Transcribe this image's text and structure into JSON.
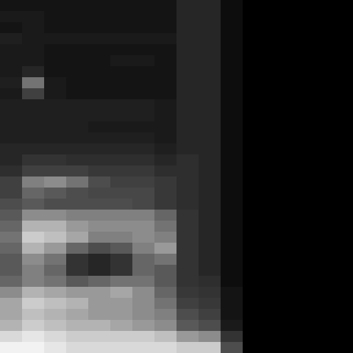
{
  "chart_data": {
    "type": "heatmap",
    "tick_labels": false,
    "grid": false,
    "color": "#ffffff",
    "zlim": [
      0,
      100
    ],
    "cells": [
      [
        8,
        8,
        8,
        8,
        8,
        8,
        8,
        8,
        15,
        15,
        5,
        0,
        0,
        0,
        0,
        0
      ],
      [
        10,
        10,
        8,
        8,
        8,
        8,
        8,
        8,
        15,
        15,
        5,
        0,
        0,
        0,
        0,
        0
      ],
      [
        8,
        10,
        8,
        8,
        8,
        8,
        8,
        8,
        15,
        15,
        5,
        0,
        0,
        0,
        0,
        0
      ],
      [
        12,
        10,
        10,
        10,
        10,
        10,
        10,
        10,
        15,
        15,
        5,
        0,
        0,
        0,
        0,
        0
      ],
      [
        10,
        10,
        8,
        8,
        8,
        8,
        8,
        8,
        15,
        15,
        5,
        0,
        0,
        0,
        0,
        0
      ],
      [
        10,
        10,
        8,
        8,
        8,
        10,
        10,
        8,
        15,
        15,
        5,
        0,
        0,
        0,
        0,
        0
      ],
      [
        10,
        15,
        8,
        8,
        8,
        8,
        8,
        8,
        15,
        15,
        5,
        0,
        0,
        0,
        0,
        0
      ],
      [
        12,
        45,
        10,
        8,
        8,
        8,
        8,
        8,
        15,
        15,
        5,
        0,
        0,
        0,
        0,
        0
      ],
      [
        10,
        25,
        10,
        8,
        8,
        8,
        8,
        8,
        15,
        15,
        5,
        0,
        0,
        0,
        0,
        0
      ],
      [
        12,
        12,
        12,
        12,
        12,
        12,
        12,
        10,
        15,
        15,
        5,
        0,
        0,
        0,
        0,
        0
      ],
      [
        12,
        12,
        12,
        12,
        12,
        12,
        12,
        10,
        15,
        15,
        5,
        0,
        0,
        0,
        0,
        0
      ],
      [
        12,
        12,
        12,
        12,
        10,
        10,
        10,
        10,
        15,
        15,
        5,
        0,
        0,
        0,
        0,
        0
      ],
      [
        12,
        12,
        12,
        12,
        12,
        12,
        12,
        10,
        15,
        15,
        5,
        0,
        0,
        0,
        0,
        0
      ],
      [
        15,
        15,
        15,
        15,
        15,
        15,
        15,
        12,
        15,
        15,
        5,
        0,
        0,
        0,
        0,
        0
      ],
      [
        15,
        20,
        20,
        18,
        18,
        18,
        18,
        15,
        18,
        15,
        5,
        0,
        0,
        0,
        0,
        0
      ],
      [
        18,
        25,
        25,
        25,
        22,
        22,
        22,
        18,
        18,
        15,
        5,
        0,
        0,
        0,
        0,
        0
      ],
      [
        25,
        50,
        55,
        45,
        30,
        25,
        25,
        22,
        18,
        15,
        5,
        0,
        0,
        0,
        0,
        0
      ],
      [
        25,
        40,
        35,
        30,
        28,
        28,
        28,
        22,
        18,
        15,
        5,
        0,
        0,
        0,
        0,
        0
      ],
      [
        30,
        35,
        30,
        30,
        30,
        30,
        28,
        22,
        18,
        15,
        5,
        0,
        0,
        0,
        0,
        0
      ],
      [
        35,
        55,
        55,
        50,
        50,
        50,
        50,
        40,
        20,
        15,
        5,
        0,
        0,
        0,
        0,
        0
      ],
      [
        40,
        70,
        70,
        60,
        55,
        55,
        55,
        45,
        20,
        15,
        5,
        0,
        0,
        0,
        0,
        0
      ],
      [
        45,
        80,
        75,
        65,
        50,
        50,
        55,
        50,
        20,
        15,
        5,
        0,
        0,
        0,
        0,
        0
      ],
      [
        40,
        70,
        60,
        40,
        30,
        35,
        50,
        60,
        20,
        15,
        5,
        0,
        0,
        0,
        0,
        0
      ],
      [
        35,
        55,
        45,
        20,
        15,
        20,
        40,
        45,
        20,
        15,
        5,
        0,
        0,
        0,
        0,
        0
      ],
      [
        35,
        50,
        40,
        20,
        15,
        20,
        40,
        35,
        20,
        15,
        5,
        0,
        0,
        0,
        0,
        0
      ],
      [
        40,
        50,
        45,
        35,
        40,
        45,
        45,
        35,
        20,
        18,
        5,
        0,
        0,
        0,
        0,
        0
      ],
      [
        55,
        70,
        65,
        60,
        60,
        65,
        55,
        40,
        22,
        20,
        8,
        0,
        0,
        0,
        0,
        0
      ],
      [
        65,
        80,
        75,
        70,
        60,
        60,
        55,
        45,
        25,
        22,
        8,
        0,
        0,
        0,
        0,
        0
      ],
      [
        65,
        75,
        70,
        65,
        60,
        60,
        55,
        50,
        30,
        25,
        8,
        0,
        0,
        0,
        0,
        0
      ],
      [
        70,
        80,
        75,
        70,
        70,
        65,
        60,
        55,
        35,
        30,
        10,
        0,
        0,
        0,
        0,
        0
      ],
      [
        85,
        90,
        85,
        80,
        80,
        80,
        80,
        75,
        60,
        55,
        20,
        0,
        0,
        0,
        0,
        0
      ],
      [
        95,
        95,
        90,
        85,
        85,
        85,
        85,
        85,
        80,
        80,
        30,
        0,
        0,
        0,
        0,
        0
      ]
    ]
  }
}
